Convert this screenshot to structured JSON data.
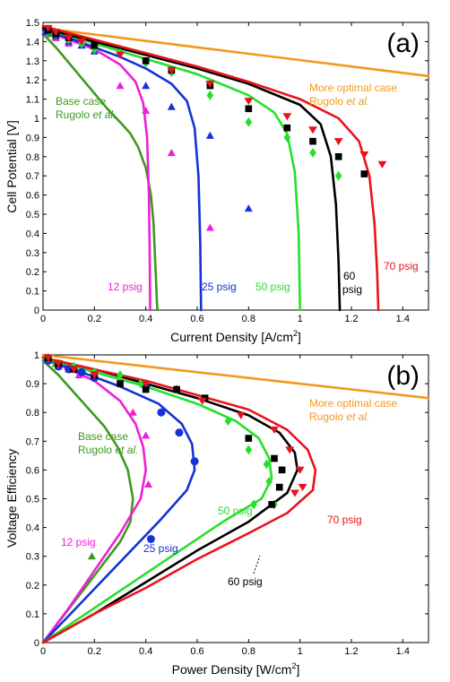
{
  "colors": {
    "orange": "#f29a1a",
    "base": "#3d9a1e",
    "p12": "#ee1fd6",
    "p25": "#1432d6",
    "p50": "#24e02b",
    "p60": "#000000",
    "p70": "#e8141c"
  },
  "chart_data": [
    {
      "type": "line",
      "panel_label": "(a)",
      "xlabel": "Current Density [A/cm",
      "xlabel_sup": "2",
      "xlabel_end": "]",
      "ylabel": "Cell Potential [V]",
      "xlim": [
        0,
        1.5
      ],
      "ylim": [
        0,
        1.5
      ],
      "xticks": [
        "0",
        "0.2",
        "0.4",
        "0.6",
        "0.8",
        "1",
        "1.2",
        "1.4"
      ],
      "yticks": [
        "0",
        "0.1",
        "0.2",
        "0.3",
        "0.4",
        "0.5",
        "0.6",
        "0.7",
        "0.8",
        "0.9",
        "1",
        "1.1",
        "1.2",
        "1.3",
        "1.4",
        "1.5"
      ],
      "labels": {
        "opt1": "More optimal case",
        "opt2": "Rugolo ",
        "opt2i": "et al.",
        "base1": "Base case",
        "base2": "Rugolo ",
        "base2i": "et al.",
        "p12": "12 psig",
        "p25": "25 psig",
        "p50": "50 psig",
        "p60a": "60",
        "p60b": "psig",
        "p70": "70 psig"
      },
      "series": [
        {
          "key": "opt",
          "color_key": "orange",
          "x": [
            0,
            0.3,
            0.6,
            0.9,
            1.2,
            1.5
          ],
          "y": [
            1.47,
            1.42,
            1.37,
            1.32,
            1.27,
            1.22
          ]
        },
        {
          "key": "base",
          "color_key": "base",
          "x": [
            0,
            0.05,
            0.1,
            0.15,
            0.2,
            0.25,
            0.3,
            0.34,
            0.37,
            0.4,
            0.42,
            0.43,
            0.435,
            0.44,
            0.443,
            0.445
          ],
          "y": [
            1.44,
            1.37,
            1.29,
            1.21,
            1.13,
            1.05,
            0.98,
            0.92,
            0.85,
            0.74,
            0.6,
            0.45,
            0.3,
            0.15,
            0.05,
            0
          ]
        },
        {
          "key": "p12",
          "color_key": "p12",
          "x": [
            0,
            0.1,
            0.2,
            0.3,
            0.36,
            0.39,
            0.405,
            0.412,
            0.415,
            0.417
          ],
          "y": [
            1.46,
            1.41,
            1.36,
            1.28,
            1.19,
            1.08,
            0.9,
            0.6,
            0.3,
            0
          ]
        },
        {
          "key": "p25",
          "color_key": "p25",
          "x": [
            0,
            0.1,
            0.2,
            0.3,
            0.4,
            0.5,
            0.56,
            0.59,
            0.605,
            0.612,
            0.615
          ],
          "y": [
            1.46,
            1.42,
            1.37,
            1.32,
            1.26,
            1.18,
            1.09,
            0.95,
            0.7,
            0.35,
            0
          ]
        },
        {
          "key": "p50",
          "color_key": "p50",
          "x": [
            0,
            0.2,
            0.4,
            0.6,
            0.8,
            0.9,
            0.95,
            0.98,
            0.995,
            1.0
          ],
          "y": [
            1.47,
            1.39,
            1.31,
            1.23,
            1.12,
            1.03,
            0.92,
            0.72,
            0.4,
            0
          ]
        },
        {
          "key": "p60",
          "color_key": "p60",
          "x": [
            0,
            0.2,
            0.4,
            0.6,
            0.8,
            1.0,
            1.08,
            1.12,
            1.14,
            1.15,
            1.155
          ],
          "y": [
            1.47,
            1.4,
            1.33,
            1.26,
            1.18,
            1.07,
            0.97,
            0.8,
            0.55,
            0.25,
            0
          ]
        },
        {
          "key": "p70",
          "color_key": "p70",
          "x": [
            0,
            0.2,
            0.4,
            0.6,
            0.8,
            1.0,
            1.15,
            1.23,
            1.27,
            1.29,
            1.3,
            1.305
          ],
          "y": [
            1.48,
            1.41,
            1.34,
            1.27,
            1.19,
            1.1,
            1.0,
            0.88,
            0.7,
            0.45,
            0.2,
            0
          ]
        }
      ],
      "markers": [
        {
          "key": "base_m",
          "color_key": "base",
          "shape": "triangle",
          "x": [
            0.01,
            0.03,
            0.05
          ],
          "y": [
            1.45,
            1.44,
            1.42
          ]
        },
        {
          "key": "p12_m",
          "color_key": "p12",
          "shape": "triangle",
          "x": [
            0.01,
            0.05,
            0.1,
            0.3,
            0.4,
            0.5,
            0.65
          ],
          "y": [
            1.45,
            1.42,
            1.39,
            1.17,
            1.04,
            0.82,
            0.43
          ]
        },
        {
          "key": "p25_m",
          "color_key": "p25",
          "shape": "triangle",
          "x": [
            0.01,
            0.05,
            0.1,
            0.15,
            0.2,
            0.4,
            0.5,
            0.65,
            0.8
          ],
          "y": [
            1.45,
            1.43,
            1.4,
            1.38,
            1.35,
            1.17,
            1.06,
            0.91,
            0.53
          ]
        },
        {
          "key": "p50_m",
          "color_key": "p50",
          "shape": "diamond",
          "x": [
            0.02,
            0.05,
            0.1,
            0.15,
            0.2,
            0.3,
            0.4,
            0.5,
            0.65,
            0.8,
            0.95,
            1.05,
            1.15
          ],
          "y": [
            1.46,
            1.44,
            1.41,
            1.39,
            1.36,
            1.34,
            1.29,
            1.24,
            1.12,
            0.98,
            0.9,
            0.82,
            0.7
          ]
        },
        {
          "key": "p60_m",
          "color_key": "p60",
          "shape": "square",
          "x": [
            0.02,
            0.05,
            0.1,
            0.2,
            0.4,
            0.5,
            0.65,
            0.8,
            0.95,
            1.05,
            1.15,
            1.25
          ],
          "y": [
            1.46,
            1.44,
            1.42,
            1.38,
            1.3,
            1.25,
            1.17,
            1.05,
            0.95,
            0.88,
            0.8,
            0.71
          ]
        },
        {
          "key": "p70_m",
          "color_key": "p70",
          "shape": "triangle-down",
          "x": [
            0.02,
            0.05,
            0.1,
            0.15,
            0.3,
            0.5,
            0.65,
            0.8,
            0.95,
            1.05,
            1.15,
            1.25,
            1.32
          ],
          "y": [
            1.47,
            1.45,
            1.42,
            1.4,
            1.33,
            1.25,
            1.18,
            1.09,
            1.01,
            0.94,
            0.88,
            0.81,
            0.76
          ]
        }
      ]
    },
    {
      "type": "line",
      "panel_label": "(b)",
      "xlabel": "Power Density [W/cm",
      "xlabel_sup": "2",
      "xlabel_end": "]",
      "ylabel": "Voltage Efficiency",
      "xlim": [
        0,
        1.5
      ],
      "ylim": [
        0,
        1
      ],
      "xticks": [
        "0",
        "0.2",
        "0.4",
        "0.6",
        "0.8",
        "1",
        "1.2",
        "1.4"
      ],
      "yticks": [
        "0",
        "0.1",
        "0.2",
        "0.3",
        "0.4",
        "0.5",
        "0.6",
        "0.7",
        "0.8",
        "0.9",
        "1"
      ],
      "labels": {
        "opt1": "More optimal case",
        "opt2": "Rugolo ",
        "opt2i": "et al.",
        "base1": "Base case",
        "base2": "Rugolo ",
        "base2i": "et al.",
        "p12": "12 psig",
        "p25": "25 psig",
        "p50": "50 psig",
        "p60": "60 psig",
        "p70": "70 psig"
      },
      "series": [
        {
          "key": "opt",
          "color_key": "orange",
          "x": [
            0,
            0.3,
            0.6,
            0.9,
            1.2,
            1.5
          ],
          "y": [
            1.0,
            0.97,
            0.94,
            0.91,
            0.88,
            0.85
          ]
        },
        {
          "key": "base",
          "color_key": "base",
          "x": [
            0,
            0.06,
            0.12,
            0.18,
            0.24,
            0.29,
            0.33,
            0.35,
            0.34,
            0.3,
            0.24,
            0.18,
            0.12,
            0.06,
            0
          ],
          "y": [
            0.98,
            0.93,
            0.87,
            0.81,
            0.75,
            0.68,
            0.6,
            0.5,
            0.42,
            0.35,
            0.28,
            0.21,
            0.14,
            0.07,
            0
          ]
        },
        {
          "key": "p12",
          "color_key": "p12",
          "x": [
            0,
            0.1,
            0.2,
            0.3,
            0.36,
            0.39,
            0.4,
            0.38,
            0.3,
            0.2,
            0.1,
            0
          ],
          "y": [
            0.99,
            0.95,
            0.91,
            0.84,
            0.76,
            0.68,
            0.6,
            0.5,
            0.38,
            0.25,
            0.12,
            0
          ]
        },
        {
          "key": "p25",
          "color_key": "p25",
          "x": [
            0,
            0.15,
            0.3,
            0.45,
            0.54,
            0.58,
            0.59,
            0.56,
            0.45,
            0.3,
            0.15,
            0
          ],
          "y": [
            0.99,
            0.94,
            0.89,
            0.83,
            0.76,
            0.69,
            0.6,
            0.53,
            0.42,
            0.28,
            0.14,
            0
          ]
        },
        {
          "key": "p50",
          "color_key": "p50",
          "x": [
            0,
            0.2,
            0.4,
            0.6,
            0.75,
            0.84,
            0.88,
            0.89,
            0.85,
            0.7,
            0.5,
            0.3,
            0.1,
            0
          ],
          "y": [
            0.99,
            0.94,
            0.89,
            0.83,
            0.77,
            0.71,
            0.64,
            0.57,
            0.5,
            0.42,
            0.3,
            0.18,
            0.06,
            0
          ]
        },
        {
          "key": "p60",
          "color_key": "p60",
          "x": [
            0,
            0.2,
            0.4,
            0.6,
            0.8,
            0.92,
            0.98,
            0.99,
            0.95,
            0.8,
            0.6,
            0.4,
            0.2,
            0
          ],
          "y": [
            0.99,
            0.95,
            0.9,
            0.85,
            0.79,
            0.73,
            0.66,
            0.6,
            0.52,
            0.42,
            0.32,
            0.21,
            0.1,
            0
          ]
        },
        {
          "key": "p70",
          "color_key": "p70",
          "x": [
            0,
            0.2,
            0.4,
            0.6,
            0.8,
            0.95,
            1.03,
            1.06,
            1.05,
            0.95,
            0.8,
            0.6,
            0.4,
            0.2,
            0
          ],
          "y": [
            0.99,
            0.95,
            0.91,
            0.86,
            0.81,
            0.74,
            0.67,
            0.6,
            0.53,
            0.45,
            0.38,
            0.29,
            0.19,
            0.1,
            0
          ]
        }
      ],
      "markers": [
        {
          "key": "base_m",
          "color_key": "base",
          "shape": "triangle",
          "x": [
            0.01,
            0.03,
            0.05,
            0.19
          ],
          "y": [
            0.99,
            0.98,
            0.97,
            0.3
          ]
        },
        {
          "key": "p12_m",
          "color_key": "p12",
          "shape": "triangle",
          "x": [
            0.02,
            0.06,
            0.1,
            0.14,
            0.35,
            0.4,
            0.41
          ],
          "y": [
            0.98,
            0.96,
            0.95,
            0.93,
            0.8,
            0.72,
            0.55
          ]
        },
        {
          "key": "p25_m",
          "color_key": "p25",
          "shape": "circle",
          "x": [
            0.02,
            0.06,
            0.1,
            0.15,
            0.2,
            0.4,
            0.46,
            0.53,
            0.59,
            0.42
          ],
          "y": [
            0.98,
            0.96,
            0.95,
            0.94,
            0.92,
            0.89,
            0.8,
            0.73,
            0.63,
            0.36
          ]
        },
        {
          "key": "p50_m",
          "color_key": "p50",
          "shape": "diamond",
          "x": [
            0.02,
            0.06,
            0.12,
            0.2,
            0.3,
            0.38,
            0.52,
            0.72,
            0.8,
            0.87,
            0.88,
            0.9,
            0.82
          ],
          "y": [
            0.99,
            0.97,
            0.96,
            0.94,
            0.93,
            0.9,
            0.88,
            0.77,
            0.67,
            0.62,
            0.56,
            0.48,
            0.48
          ]
        },
        {
          "key": "p60_m",
          "color_key": "p60",
          "shape": "square",
          "x": [
            0.02,
            0.06,
            0.12,
            0.2,
            0.3,
            0.4,
            0.52,
            0.63,
            0.8,
            0.9,
            0.93,
            0.92,
            0.89
          ],
          "y": [
            0.99,
            0.97,
            0.95,
            0.93,
            0.9,
            0.88,
            0.88,
            0.85,
            0.71,
            0.64,
            0.6,
            0.54,
            0.48
          ]
        },
        {
          "key": "p70_m",
          "color_key": "p70",
          "shape": "triangle-down",
          "x": [
            0.02,
            0.06,
            0.12,
            0.2,
            0.4,
            0.62,
            0.77,
            0.9,
            0.96,
            1.0,
            1.01,
            0.98
          ],
          "y": [
            0.99,
            0.97,
            0.95,
            0.93,
            0.9,
            0.84,
            0.79,
            0.74,
            0.67,
            0.6,
            0.54,
            0.52
          ]
        }
      ]
    }
  ]
}
